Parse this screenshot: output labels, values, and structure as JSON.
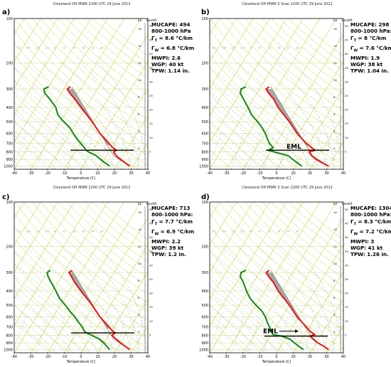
{
  "panels": [
    {
      "letter": "a)",
      "title": "Cleveland OH MWR 2100 UTC 29 June 2012",
      "stats": {
        "mucape": "MUCAPE: 494",
        "layer": "800-1000 hPa",
        "gamma_t": "Γ",
        "gamma_t_sub": "T",
        "gamma_t_val": " = 8.6 °C/km",
        "gamma_w": "Γ",
        "gamma_w_sub": "W",
        "gamma_w_val": " = 6.8 °C/km",
        "mwpi": "MWPI: 2.6",
        "wgp": "WGP:  40 kt",
        "tpw": "TPW:  1.14 in."
      },
      "eml_label": "",
      "inversion_p": 780
    },
    {
      "letter": "b)",
      "title": "Cleveland OH MWR S Scan 2100 UTC 29 June 2012",
      "stats": {
        "mucape": "MUCAPE: 298",
        "layer": "800-1000 hPa:",
        "gamma_t": "Γ",
        "gamma_t_sub": "T",
        "gamma_t_val": " = 8 °C/km",
        "gamma_w": "Γ",
        "gamma_w_sub": "W",
        "gamma_w_val": " = 7.6 °C/km",
        "mwpi": "MWPI: 1.9",
        "wgp": "WGP:  38 kt",
        "tpw": "TPW:  1.04 in."
      },
      "eml_label": "EML",
      "inversion_p": 780
    },
    {
      "letter": "c)",
      "title": "Cleveland OH MWR 2200 UTC 29 June 2012",
      "stats": {
        "mucape": "MUCAPE: 713",
        "layer": "800-1000 hPa:",
        "gamma_t": "Γ",
        "gamma_t_sub": "T",
        "gamma_t_val": " = 7.7 °C/km",
        "gamma_w": "Γ",
        "gamma_w_sub": "W",
        "gamma_w_val": " = 6.9 °C/km",
        "mwpi": "MWPI: 2.2",
        "wgp": "WGP:  39 kt",
        "tpw": "TPW:  1.2 in."
      },
      "eml_label": "",
      "inversion_p": 770
    },
    {
      "letter": "d)",
      "title": "Cleveland OH MWR S Scan 2200 UTC 29 June 2012",
      "stats": {
        "mucape": "MUCAPE: 1304",
        "layer": "800-1000 hPa:",
        "gamma_t": "Γ",
        "gamma_t_sub": "T",
        "gamma_t_val": " = 8.3 °C/km",
        "gamma_w": "Γ",
        "gamma_w_sub": "W",
        "gamma_w_val": " = 7.2 °C/km",
        "mwpi": "MWPI: 3",
        "wgp": "WGP:  41 kt",
        "tpw": "TPW:  1.26 in."
      },
      "eml_label": "EML",
      "inversion_p": 810
    }
  ],
  "axes": {
    "xlabel": "Temperature (C)",
    "x_ticks": [
      "-40",
      "-30",
      "-20",
      "-10",
      "0",
      "10",
      "20",
      "30",
      "40"
    ],
    "p_ticks": [
      "100",
      "200",
      "300",
      "400",
      "500",
      "600",
      "700",
      "800",
      "900",
      "1000"
    ],
    "right_header_kn": "kn",
    "right_header_km": "km/kft",
    "right_km_ticks": [
      "16",
      "14",
      "12",
      "10",
      "8",
      "6",
      "4",
      "2"
    ],
    "right_kft_ticks": [
      "50",
      "45",
      "40",
      "35",
      "30",
      "25",
      "20",
      "15",
      "10",
      "5"
    ],
    "mixing_ratio_labels": [
      "0.1",
      "0.4",
      "1.0",
      "2.0",
      "4",
      "8",
      "12",
      "16",
      "24",
      "32"
    ]
  },
  "colors": {
    "temperature": "#ee1111",
    "dewpoint": "#118811",
    "cape_fill": "#9a9a9a",
    "dry_adiabat": "#c9d24a",
    "isotherm": "#c9d24a",
    "moist_adiabat": "#7fb7a2",
    "mixing_ratio": "#7fb7a2"
  }
}
